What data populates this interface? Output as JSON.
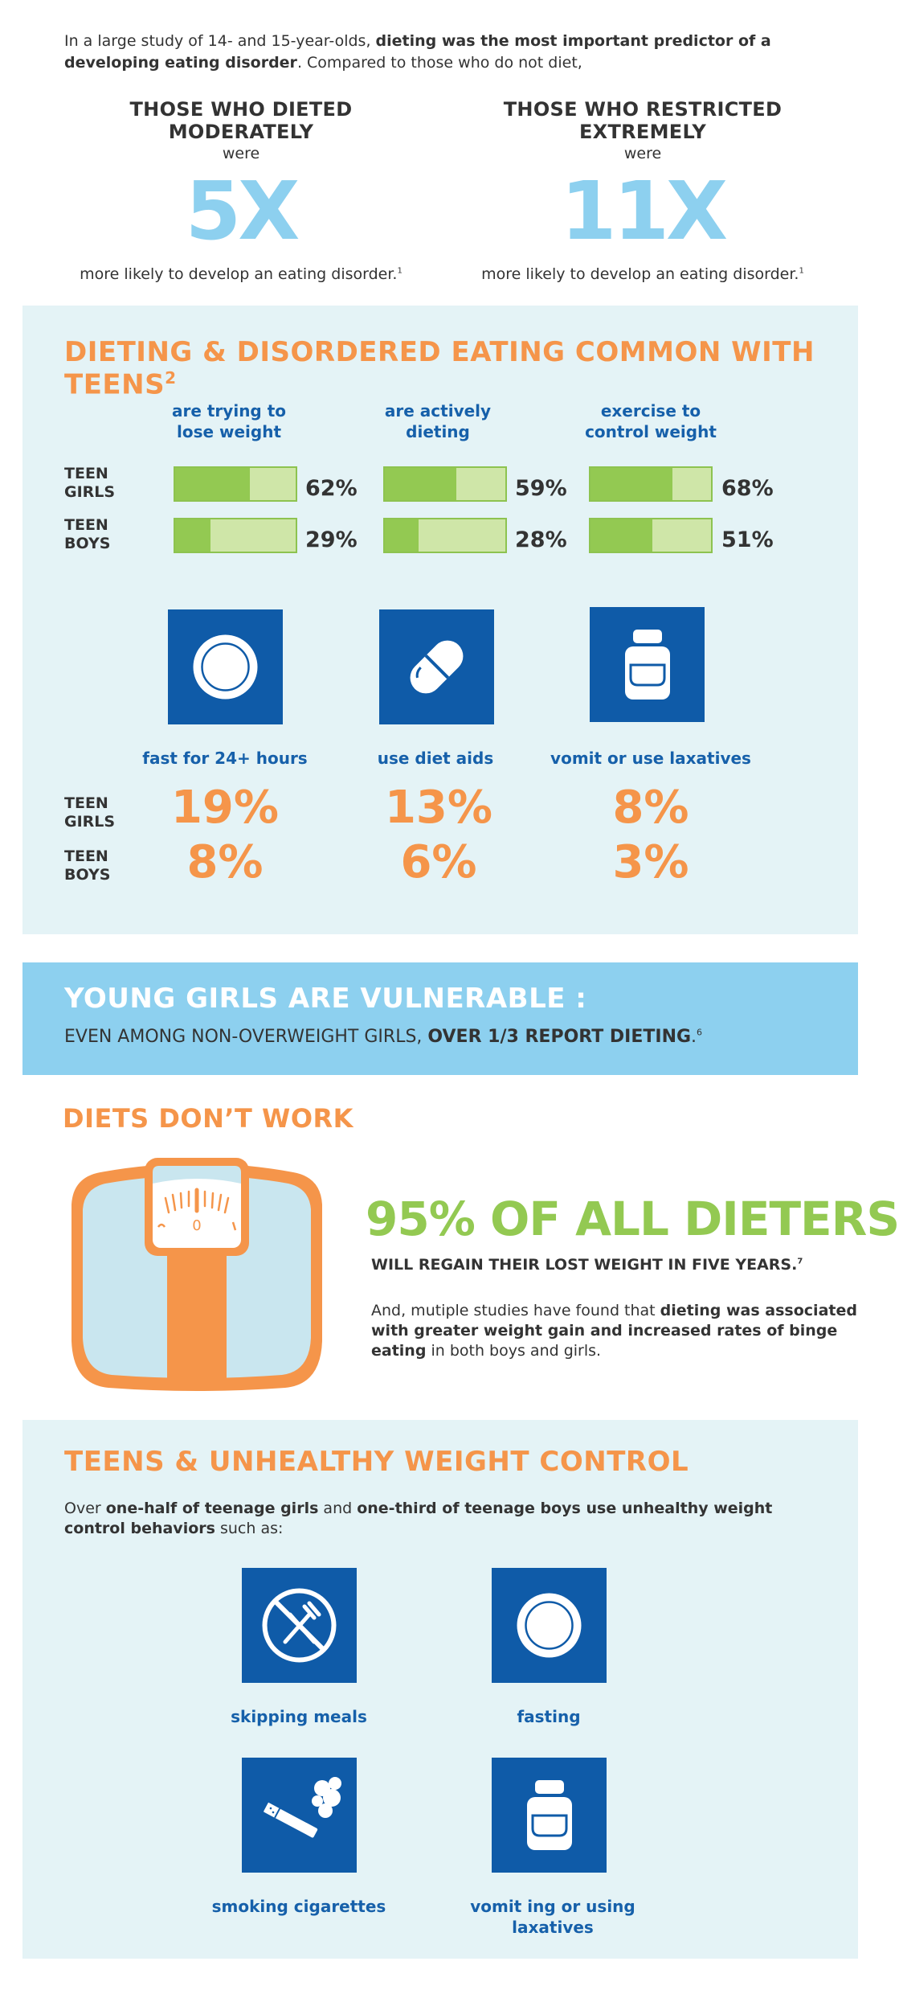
{
  "intro": {
    "text_before": "In a large study of 14- and 15-year-olds, ",
    "text_bold": "dieting was the most important predictor of a developing eating disorder",
    "text_after": ". Compared to those who do not diet,"
  },
  "comparison": [
    {
      "heading": "THOSE WHO DIETED MODERATELY",
      "sub": "were",
      "value": "5X",
      "foot": "more likely to develop an eating disorder.",
      "ref": "1"
    },
    {
      "heading": "THOSE WHO RESTRICTED EXTREMELY",
      "sub": "were",
      "value": "11X",
      "foot": "more likely to develop an eating disorder.",
      "ref": "1"
    }
  ],
  "common": {
    "title": "DIETING & DISORDERED EATING COMMON WITH TEENS",
    "ref": "2",
    "row_labels": {
      "girls_1": "TEEN",
      "girls_2": "GIRLS",
      "boys_1": "TEEN",
      "boys_2": "BOYS"
    },
    "behaviors": [
      {
        "label_1": "are trying to",
        "label_2": "lose weight",
        "girls": "62%",
        "boys": "29%",
        "girls_frac": 0.62,
        "boys_frac": 0.29
      },
      {
        "label_1": "are actively",
        "label_2": "dieting",
        "girls": "59%",
        "boys": "28%",
        "girls_frac": 0.59,
        "boys_frac": 0.28
      },
      {
        "label_1": "exercise to",
        "label_2": "control weight",
        "girls": "68%",
        "boys": "51%",
        "girls_frac": 0.68,
        "boys_frac": 0.51
      }
    ],
    "extreme": [
      {
        "icon": "plate-icon",
        "label": "fast for 24+ hours",
        "girls": "19%",
        "boys": "8%"
      },
      {
        "icon": "pill-icon",
        "label": "use diet aids",
        "girls": "13%",
        "boys": "6%"
      },
      {
        "icon": "bottle-icon",
        "label": "vomit or use laxatives",
        "girls": "8%",
        "boys": "3%"
      }
    ]
  },
  "vulnerable": {
    "title": "YOUNG GIRLS ARE VULNERABLE :",
    "text_before": "EVEN AMONG NON-OVERWEIGHT GIRLS, ",
    "text_bold": "OVER 1/3 REPORT DIETING",
    "text_after": ".",
    "ref": "6"
  },
  "diets": {
    "title": "DIETS DON’T WORK",
    "scale_icon": "scale-icon",
    "scale_zero": "0",
    "big": "95% OF ALL DIETERS",
    "sub": "WILL REGAIN THEIR LOST WEIGHT IN FIVE YEARS.",
    "sub_ref": "7",
    "body_before": "And, mutiple studies have found that ",
    "body_bold": "dieting was associated with greater weight gain and increased rates of binge eating",
    "body_after": " in both boys and girls."
  },
  "unhealthy": {
    "title": "TEENS & UNHEALTHY WEIGHT CONTROL",
    "t1": "Over ",
    "b1": "one-half of teenage girls",
    "t2": " and ",
    "b2": "one-third of teenage boys use unhealthy weight control behaviors",
    "t3": " such as:",
    "items": [
      {
        "icon": "no-utensils-icon",
        "label_1": "skipping meals",
        "label_2": ""
      },
      {
        "icon": "plate-icon",
        "label_1": "fasting",
        "label_2": ""
      },
      {
        "icon": "cigarette-icon",
        "label_1": "smoking cigarettes",
        "label_2": ""
      },
      {
        "icon": "bottle-icon",
        "label_1": "vomit ing or using",
        "label_2": "laxatives"
      }
    ]
  },
  "colors": {
    "orange": "#f5954a",
    "green": "#93c952",
    "blue": "#0f5ba8",
    "light_blue": "#8dd0ef",
    "pale": "#e4f3f6"
  }
}
